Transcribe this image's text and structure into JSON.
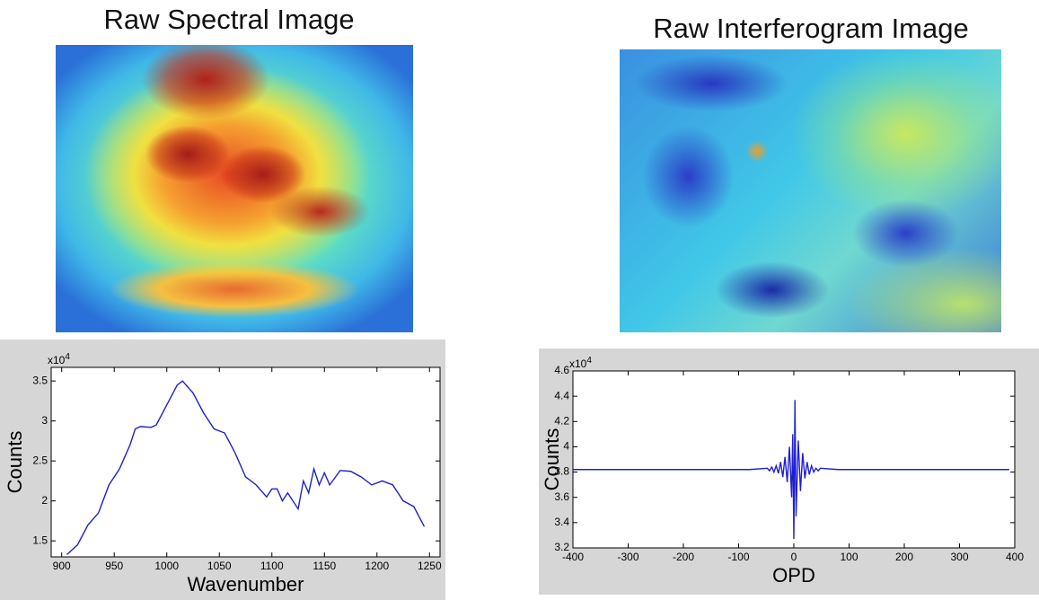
{
  "images": [
    {
      "title": "Raw Spectral Image"
    },
    {
      "title": "Raw Interferogram Image"
    }
  ],
  "chart_data": [
    {
      "type": "line",
      "x_label": "Wavenumber",
      "y_label": "Counts",
      "y_multiplier": {
        "base": "x10",
        "exponent": "4"
      },
      "x": [
        905,
        915,
        925,
        935,
        945,
        955,
        965,
        970,
        975,
        985,
        990,
        1000,
        1010,
        1015,
        1025,
        1035,
        1045,
        1055,
        1065,
        1075,
        1085,
        1095,
        1100,
        1105,
        1110,
        1115,
        1125,
        1130,
        1135,
        1140,
        1145,
        1150,
        1155,
        1165,
        1175,
        1185,
        1195,
        1205,
        1215,
        1225,
        1235,
        1245
      ],
      "values": [
        1.33,
        1.45,
        1.7,
        1.85,
        2.2,
        2.4,
        2.7,
        2.9,
        2.93,
        2.92,
        2.95,
        3.2,
        3.45,
        3.5,
        3.35,
        3.1,
        2.9,
        2.85,
        2.6,
        2.3,
        2.2,
        2.05,
        2.15,
        2.15,
        2.0,
        2.1,
        1.9,
        2.25,
        2.1,
        2.4,
        2.2,
        2.35,
        2.2,
        2.38,
        2.37,
        2.3,
        2.2,
        2.25,
        2.2,
        2.0,
        1.93,
        1.68
      ],
      "color": "#1f1fd0",
      "xlim": [
        890,
        1260
      ],
      "ylim": [
        1.3,
        3.67
      ],
      "xticks": [
        900,
        950,
        1000,
        1050,
        1100,
        1150,
        1200,
        1250
      ],
      "yticks": [
        1.5,
        2,
        2.5,
        3,
        3.5
      ]
    },
    {
      "type": "line",
      "x_label": "OPD",
      "y_label": "Counts",
      "y_multiplier": {
        "base": "x10",
        "exponent": "4"
      },
      "x": [
        -400,
        -80,
        -48,
        -44,
        -40,
        -36,
        -32,
        -28,
        -24,
        -20,
        -16,
        -12,
        -8,
        -4,
        -2,
        0,
        2,
        4,
        8,
        12,
        16,
        20,
        24,
        28,
        32,
        36,
        40,
        44,
        48,
        80,
        390
      ],
      "values": [
        3.82,
        3.82,
        3.83,
        3.81,
        3.84,
        3.8,
        3.85,
        3.79,
        3.88,
        3.76,
        3.92,
        3.72,
        4.0,
        3.6,
        4.1,
        3.27,
        4.37,
        3.45,
        4.05,
        3.65,
        3.95,
        3.75,
        3.88,
        3.78,
        3.85,
        3.8,
        3.83,
        3.81,
        3.83,
        3.82,
        3.82
      ],
      "color": "#1f1fd0",
      "xlim": [
        -400,
        400
      ],
      "ylim": [
        3.2,
        4.6
      ],
      "xticks": [
        -400,
        -300,
        -200,
        -100,
        0,
        100,
        200,
        300,
        400
      ],
      "yticks": [
        3.2,
        3.4,
        3.6,
        3.8,
        4,
        4.2,
        4.4,
        4.6
      ]
    }
  ]
}
